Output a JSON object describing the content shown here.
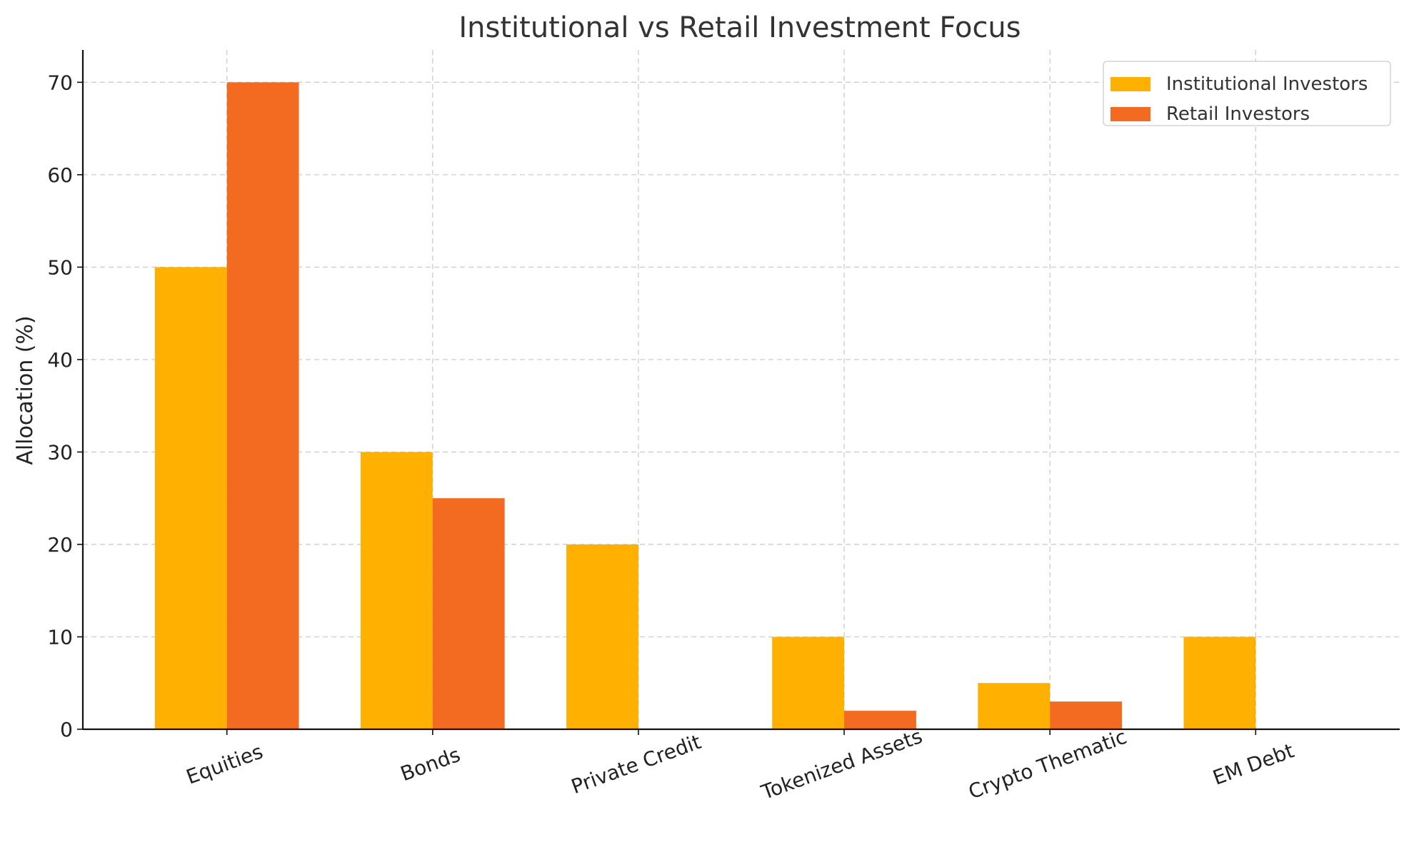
{
  "chart_data": {
    "type": "bar",
    "title": "Institutional vs Retail Investment Focus",
    "xlabel": "",
    "ylabel": "Allocation (%)",
    "categories": [
      "Equities",
      "Bonds",
      "Private Credit",
      "Tokenized Assets",
      "Crypto Thematic",
      "EM Debt"
    ],
    "series": [
      {
        "name": "Institutional Investors",
        "color": "#FFB000",
        "values": [
          50,
          30,
          20,
          10,
          5,
          10
        ]
      },
      {
        "name": "Retail Investors",
        "color": "#F26B21",
        "values": [
          70,
          25,
          0,
          2,
          3,
          0
        ]
      }
    ],
    "ylim": [
      0,
      73.5
    ],
    "yticks": [
      0,
      10,
      20,
      30,
      40,
      50,
      60,
      70
    ],
    "grid": true,
    "legend_position": "top-right"
  }
}
